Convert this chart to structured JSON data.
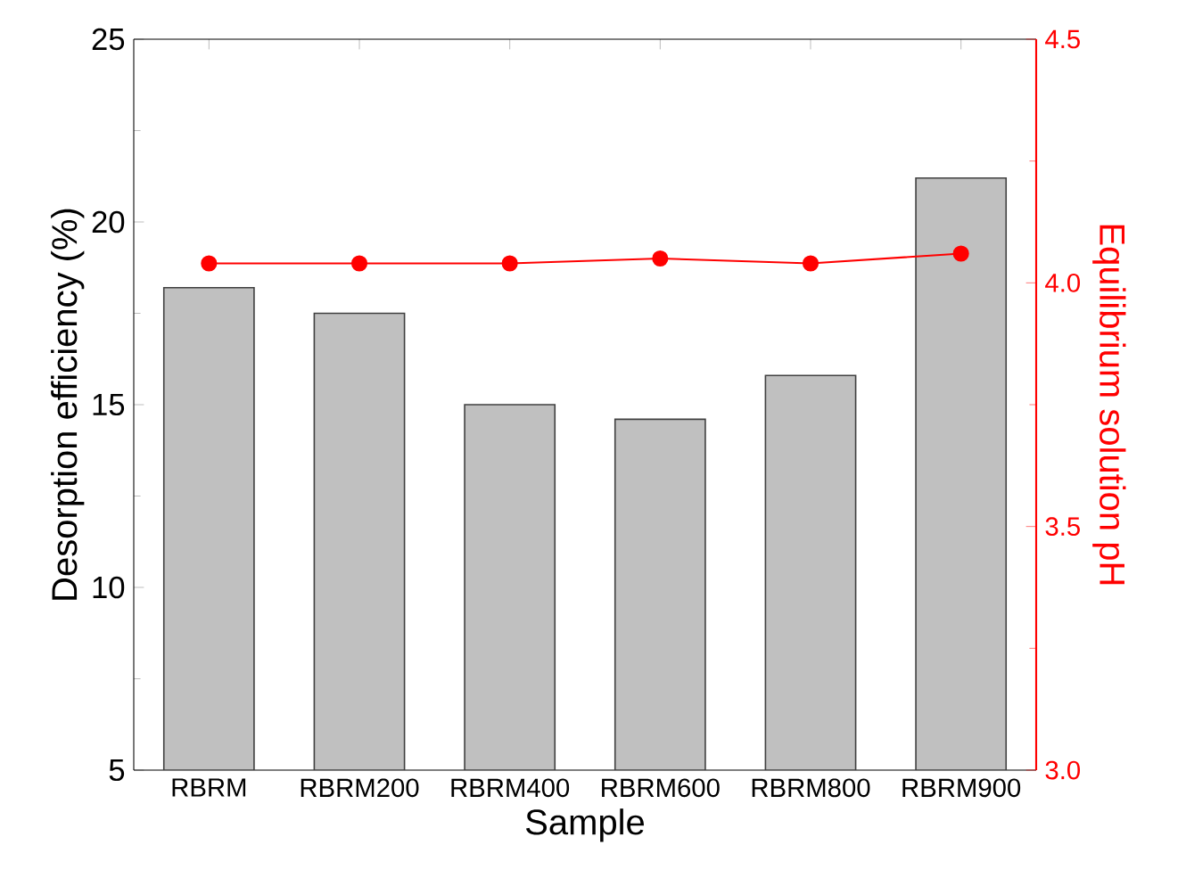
{
  "chart_data": {
    "type": "bar",
    "xlabel": "Sample",
    "ylabel": "Desorption efficiency (%)",
    "y2label": "Equilibrium solution pH",
    "categories": [
      "RBRM",
      "RBRM200",
      "RBRM400",
      "RBRM600",
      "RBRM800",
      "RBRM900"
    ],
    "series": [
      {
        "color": "#c0c0c0",
        "values": [
          18.2,
          17.5,
          15.0,
          14.6,
          15.8,
          21.2
        ]
      },
      {
        "type": "line",
        "axis": "y2",
        "color": "#ff0000",
        "marker": "circle",
        "values": [
          4.04,
          4.04,
          4.04,
          4.05,
          4.04,
          4.06
        ]
      }
    ],
    "ylim": [
      5,
      25
    ],
    "yticks": [
      5,
      10,
      15,
      20,
      25
    ],
    "y2lim": [
      3.0,
      4.5
    ],
    "y2ticks": [
      {
        "value": 3.0,
        "label": "3.0"
      },
      {
        "value": 3.5,
        "label": "3.5"
      },
      {
        "value": 4.0,
        "label": "4.0"
      },
      {
        "value": 4.5,
        "label": "4.5"
      }
    ],
    "grid": false
  }
}
